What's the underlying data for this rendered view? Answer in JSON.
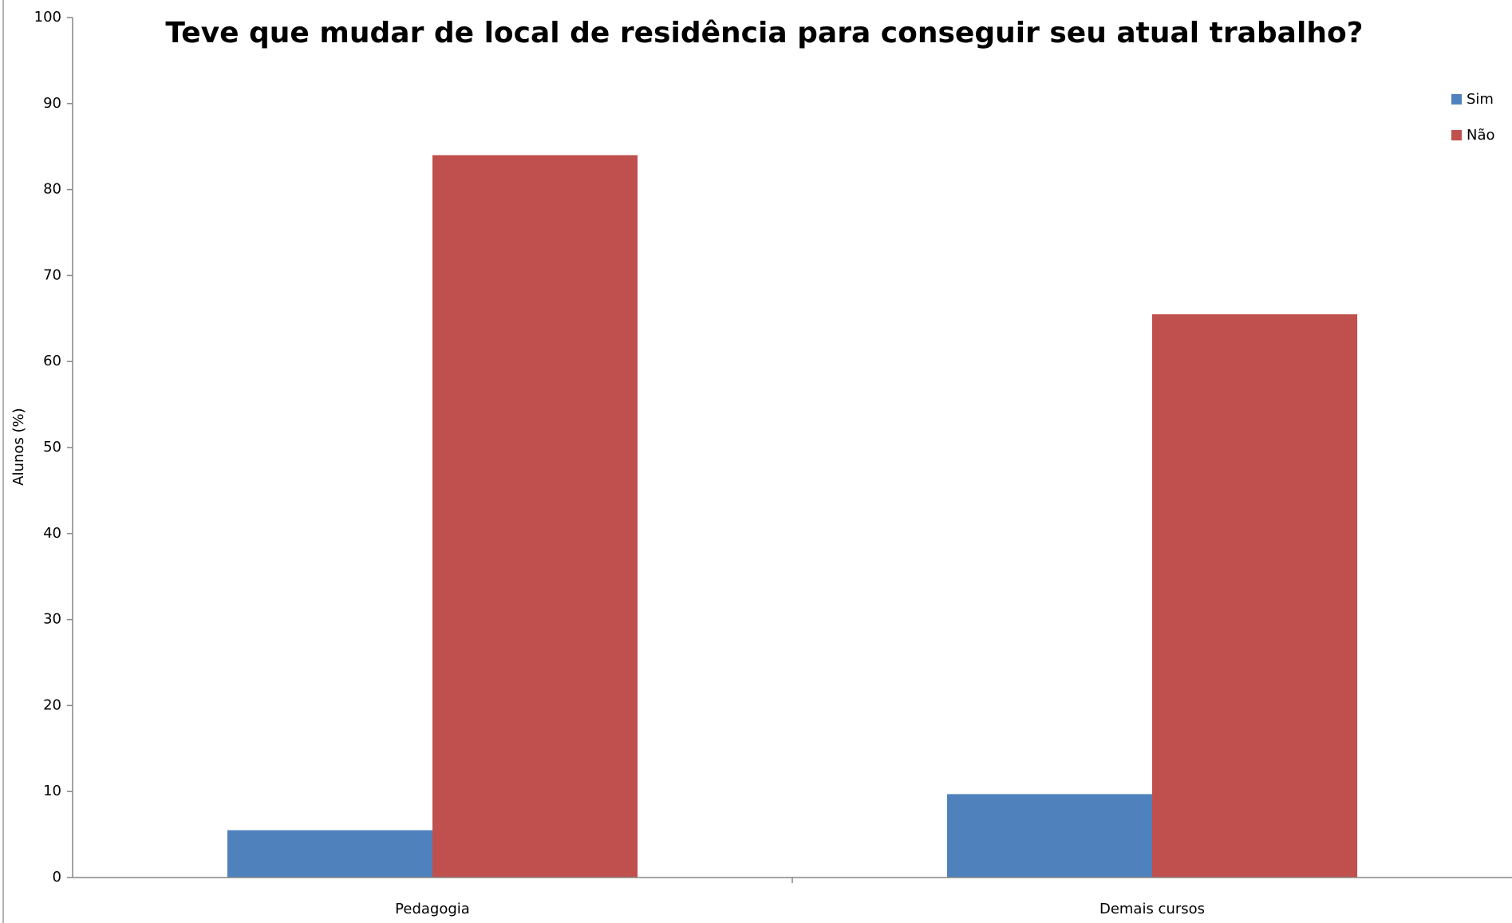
{
  "chart_data": {
    "type": "bar",
    "title": "Teve que mudar de local de residência para conseguir seu atual trabalho?",
    "y_label": "Alunos (%)",
    "categories": [
      "Pedagogia",
      "Demais cursos"
    ],
    "series": [
      {
        "name": "Sim",
        "color": "#4f81bd",
        "values": [
          5.5,
          9.7
        ]
      },
      {
        "name": "Não",
        "color": "#c0504d",
        "values": [
          84.0,
          65.5
        ]
      }
    ],
    "ylim": [
      0,
      100
    ],
    "yticks": [
      0,
      10,
      20,
      30,
      40,
      50,
      60,
      70,
      80,
      90,
      100
    ],
    "grid": false,
    "legend": "top-right"
  }
}
